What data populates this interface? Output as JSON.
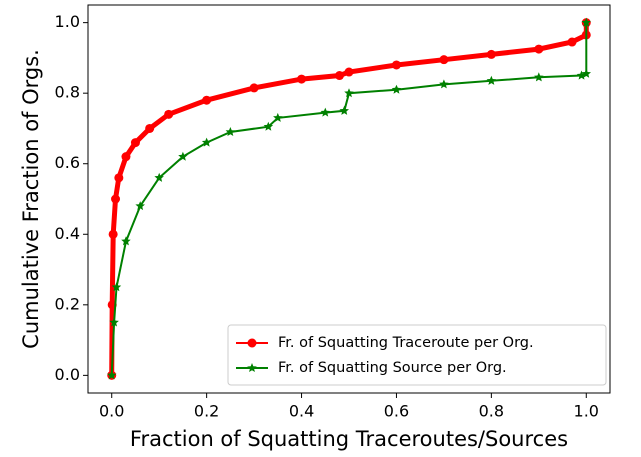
{
  "chart_data": {
    "type": "line",
    "xlabel": "Fraction of Squatting Traceroutes/Sources",
    "ylabel": "Cumulative Fraction of Orgs.",
    "xlim": [
      -0.05,
      1.05
    ],
    "ylim": [
      -0.05,
      1.05
    ],
    "xticks": [
      {
        "value": 0,
        "label": "0.0"
      },
      0.2,
      0.4,
      0.6,
      0.8,
      {
        "value": 1,
        "label": "1.0"
      }
    ],
    "yticks": [
      {
        "value": 0,
        "label": "0.0"
      },
      0.2,
      0.4,
      0.6,
      0.8,
      {
        "value": 1,
        "label": "1.0"
      }
    ],
    "legend": "lower right",
    "series": [
      {
        "name": "Fr. of Squatting Traceroute per Org.",
        "color": "#ff0000",
        "marker": "circle",
        "x": [
          0,
          0.001,
          0.003,
          0.008,
          0.015,
          0.03,
          0.05,
          0.08,
          0.12,
          0.2,
          0.3,
          0.4,
          0.48,
          0.5,
          0.6,
          0.7,
          0.8,
          0.9,
          0.97,
          1.0,
          1.0
        ],
        "values": [
          0,
          0.2,
          0.4,
          0.5,
          0.56,
          0.62,
          0.66,
          0.7,
          0.74,
          0.78,
          0.815,
          0.84,
          0.85,
          0.86,
          0.88,
          0.895,
          0.91,
          0.925,
          0.945,
          0.965,
          1.0
        ]
      },
      {
        "name": "Fr. of Squatting Source per Org.",
        "color": "#008000",
        "marker": "star",
        "x": [
          0,
          0.005,
          0.01,
          0.03,
          0.06,
          0.1,
          0.15,
          0.2,
          0.25,
          0.33,
          0.35,
          0.45,
          0.49,
          0.5,
          0.6,
          0.7,
          0.8,
          0.9,
          0.99,
          1.0,
          1.0
        ],
        "values": [
          0,
          0.15,
          0.25,
          0.38,
          0.48,
          0.56,
          0.62,
          0.66,
          0.69,
          0.705,
          0.73,
          0.745,
          0.75,
          0.8,
          0.81,
          0.825,
          0.835,
          0.845,
          0.85,
          0.855,
          1.0
        ]
      }
    ]
  }
}
